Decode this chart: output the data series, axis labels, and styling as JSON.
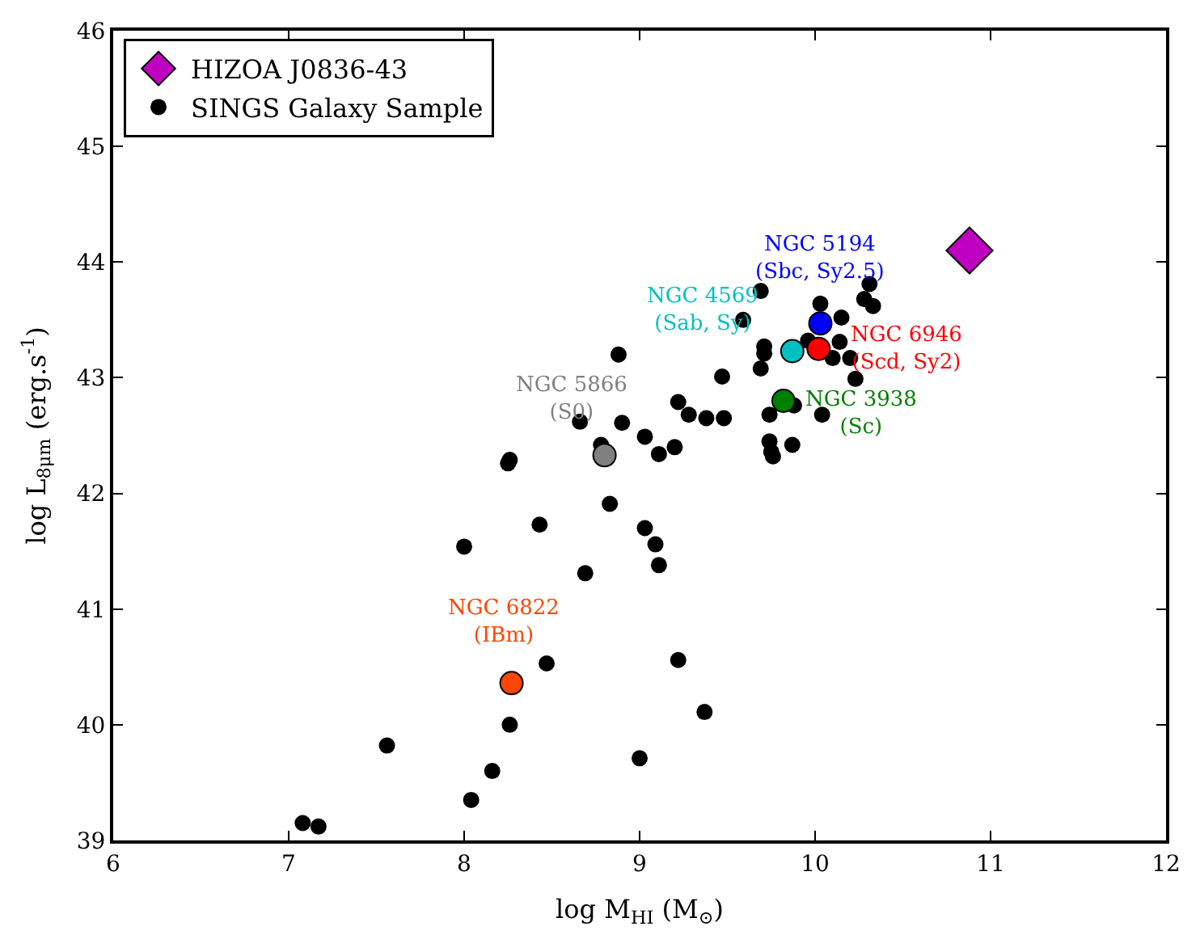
{
  "chart_data": {
    "type": "scatter",
    "xlabel": "log M$_{HI}$ (M$_{⊙}$)",
    "ylabel": "log L$_{8μm}$ (erg.s$^{-1}$)",
    "xlim": [
      6,
      12
    ],
    "ylim": [
      39,
      46
    ],
    "xticks": [
      6,
      7,
      8,
      9,
      10,
      11,
      12
    ],
    "yticks": [
      39,
      40,
      41,
      42,
      43,
      44,
      45,
      46
    ],
    "legend": "top left",
    "series": [
      {
        "name": "SINGS Galaxy Sample",
        "color": "#000000",
        "marker": "circle",
        "x": [
          7.08,
          7.17,
          7.56,
          8.0,
          8.04,
          8.16,
          8.26,
          8.47,
          8.25,
          8.26,
          8.43,
          8.69,
          8.66,
          8.78,
          8.9,
          8.83,
          9.03,
          9.09,
          9.11,
          9.03,
          9.11,
          9.2,
          8.88,
          9.69,
          9.59,
          9.47,
          9.71,
          9.71,
          9.69,
          10.03,
          10.15,
          9.96,
          10.14,
          10.1,
          10.2,
          10.23,
          10.31,
          10.28,
          10.33,
          9.88,
          9.74,
          10.04,
          9.22,
          9.28,
          9.38,
          9.48,
          9.74,
          9.76,
          9.87,
          9.75,
          9.22,
          9.37,
          9.0
        ],
        "values": [
          39.15,
          39.12,
          39.82,
          41.54,
          39.35,
          39.6,
          40.0,
          40.53,
          42.26,
          42.29,
          41.73,
          41.31,
          42.62,
          42.42,
          42.61,
          41.91,
          41.7,
          41.56,
          41.38,
          42.49,
          42.34,
          42.4,
          43.2,
          43.75,
          43.5,
          43.01,
          43.27,
          43.21,
          43.08,
          43.64,
          43.52,
          43.32,
          43.31,
          43.17,
          43.17,
          42.99,
          43.81,
          43.68,
          43.62,
          42.76,
          42.68,
          42.68,
          42.79,
          42.68,
          42.65,
          42.65,
          42.45,
          42.32,
          42.42,
          42.36,
          40.56,
          40.11,
          39.71
        ]
      },
      {
        "color": "#808080",
        "marker": "circle",
        "x": [
          8.8
        ],
        "values": [
          42.33
        ]
      },
      {
        "color": "#ff4500",
        "marker": "circle",
        "x": [
          8.27
        ],
        "values": [
          40.36
        ]
      },
      {
        "color": "#00c0c0",
        "marker": "circle",
        "x": [
          9.87
        ],
        "values": [
          43.23
        ]
      },
      {
        "color": "#008000",
        "marker": "circle",
        "x": [
          9.82
        ],
        "values": [
          42.8
        ]
      },
      {
        "color": "#ff0000",
        "marker": "circle",
        "x": [
          10.02
        ],
        "values": [
          43.25
        ]
      },
      {
        "color": "#0000ff",
        "marker": "circle",
        "x": [
          10.03
        ],
        "values": [
          43.47
        ]
      },
      {
        "name": "HIZOA J0836-43",
        "color": "#c000c0",
        "marker": "diamond",
        "x": [
          10.88
        ],
        "values": [
          44.1
        ]
      }
    ],
    "annotations": [
      {
        "text": "NGC 5866\n(S0)",
        "x": 8.8,
        "y": 42.33
      },
      {
        "text": "NGC 6822\n(IBm)",
        "x": 8.27,
        "y": 40.36
      },
      {
        "text": "NGC 4569\n(Sab, Sy)",
        "x": 9.87,
        "y": 43.23
      },
      {
        "text": "NGC 3938\n(Sc)",
        "x": 9.82,
        "y": 42.8
      },
      {
        "text": "NGC 6946\n(Scd, Sy2)",
        "x": 10.02,
        "y": 43.25
      },
      {
        "text": "NGC 5194\n(Sbc, Sy2.5)",
        "x": 10.03,
        "y": 43.47
      }
    ]
  }
}
